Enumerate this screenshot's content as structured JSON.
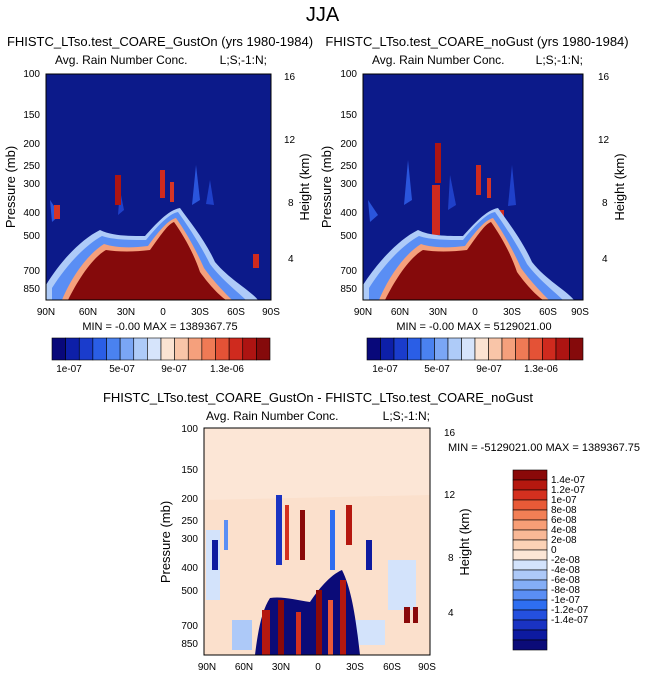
{
  "figure": {
    "title": "JJA"
  },
  "colors": {
    "seq": [
      "#08087a",
      "#0d1fa8",
      "#1a3ccc",
      "#2a5ee6",
      "#4a82f0",
      "#7aa6f5",
      "#aecbf8",
      "#d6e4fb",
      "#fbe3d2",
      "#f9c5a8",
      "#f5a07c",
      "#ef7a55",
      "#e45236",
      "#cf2a1e",
      "#ad1412",
      "#850a0b"
    ],
    "diff": [
      "#0b0b78",
      "#0d1aa0",
      "#1a33c2",
      "#2450de",
      "#2e6ef0",
      "#5a8ef4",
      "#84aef6",
      "#adc9f8",
      "#d3e3fb",
      "#fce6d6",
      "#fbd2b6",
      "#f9b896",
      "#f79e76",
      "#f27f55",
      "#e85a37",
      "#d4301f",
      "#b5180f",
      "#8a0909"
    ]
  },
  "chart_data": [
    {
      "type": "heatmap",
      "title": "FHISTC_LTso.test_COARE_GustOn (yrs 1980-1984)",
      "subtitle_left": "Avg. Rain Number Conc.",
      "subtitle_right": "L;S;-1:N;",
      "ylabel": "Pressure (mb)",
      "y2label": "Height (km)",
      "x_ticks": [
        "90N",
        "60N",
        "30N",
        "0",
        "30S",
        "60S",
        "90S"
      ],
      "y_ticks": [
        "100",
        "150",
        "200",
        "250",
        "300",
        "400",
        "500",
        "700",
        "850"
      ],
      "y2_ticks": [
        "16",
        "12",
        "8",
        "4"
      ],
      "stats": "MIN =  -0.00   MAX = 1389367.75",
      "colorbar_labels": [
        "1e-07",
        "5e-07",
        "9e-07",
        "1.3e-06"
      ]
    },
    {
      "type": "heatmap",
      "title": "FHISTC_LTso.test_COARE_noGust (yrs 1980-1984)",
      "subtitle_left": "Avg. Rain Number Conc.",
      "subtitle_right": "L;S;-1:N;",
      "ylabel": "Pressure (mb)",
      "y2label": "Height (km)",
      "x_ticks": [
        "90N",
        "60N",
        "30N",
        "0",
        "30S",
        "60S",
        "90S"
      ],
      "y_ticks": [
        "100",
        "150",
        "200",
        "250",
        "300",
        "400",
        "500",
        "700",
        "850"
      ],
      "y2_ticks": [
        "16",
        "12",
        "8",
        "4"
      ],
      "stats": "MIN =  -0.00   MAX = 5129021.00",
      "colorbar_labels": [
        "1e-07",
        "5e-07",
        "9e-07",
        "1.3e-06"
      ]
    },
    {
      "type": "heatmap",
      "title": "FHISTC_LTso.test_COARE_GustOn - FHISTC_LTso.test_COARE_noGust",
      "subtitle_left": "Avg. Rain Number Conc.",
      "subtitle_right": "L;S;-1:N;",
      "ylabel": "Pressure (mb)",
      "y2label": "Height (km)",
      "x_ticks": [
        "90N",
        "60N",
        "30N",
        "0",
        "30S",
        "60S",
        "90S"
      ],
      "y_ticks": [
        "100",
        "150",
        "200",
        "250",
        "300",
        "400",
        "500",
        "700",
        "850"
      ],
      "y2_ticks": [
        "16",
        "12",
        "8",
        "4"
      ],
      "stats": "MIN = -5129021.00  MAX = 1389367.75",
      "colorbar_labels": [
        "1.4e-07",
        "1.2e-07",
        "1e-07",
        "8e-08",
        "6e-08",
        "4e-08",
        "2e-08",
        "0",
        "-2e-08",
        "-4e-08",
        "-6e-08",
        "-8e-08",
        "-1e-07",
        "-1.2e-07",
        "-1.4e-07"
      ]
    }
  ]
}
